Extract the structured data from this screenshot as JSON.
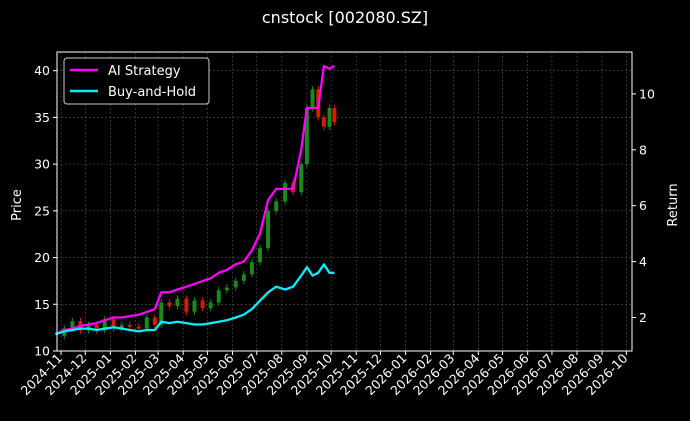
{
  "chart_data": {
    "type": "line",
    "title": "cnstock [002080.SZ]",
    "xlabel": "",
    "ylabel": "Price",
    "y2label": "Return",
    "x_tick_labels": [
      "2024-11",
      "2024-12",
      "2025-01",
      "2025-02",
      "2025-03",
      "2025-04",
      "2025-05",
      "2025-06",
      "2025-07",
      "2025-08",
      "2025-09",
      "2025-10",
      "2025-11",
      "2025-12",
      "2026-01",
      "2026-02",
      "2026-03",
      "2026-04",
      "2026-05",
      "2026-06",
      "2026-07",
      "2026-08",
      "2026-09",
      "2026-10"
    ],
    "ylim": [
      10,
      42
    ],
    "y_ticks": [
      10,
      15,
      20,
      25,
      30,
      35,
      40
    ],
    "y2lim": [
      0.8,
      11.5
    ],
    "y2_ticks": [
      2,
      4,
      6,
      8,
      10
    ],
    "grid": true,
    "legend_position": "top-left",
    "colors": {
      "background": "#000000",
      "axes": "#ffffff",
      "grid": "#555555",
      "candle_up": "#1a8a1a",
      "candle_down": "#cc2200"
    },
    "price_candles": {
      "x": [
        "2024-10-25",
        "2024-11-05",
        "2024-11-15",
        "2024-11-25",
        "2024-12-05",
        "2024-12-15",
        "2024-12-25",
        "2025-01-05",
        "2025-01-15",
        "2025-01-25",
        "2025-02-05",
        "2025-02-15",
        "2025-02-25",
        "2025-03-05",
        "2025-03-15",
        "2025-03-25",
        "2025-04-05",
        "2025-04-15",
        "2025-04-25",
        "2025-05-05",
        "2025-05-15",
        "2025-05-25",
        "2025-06-05",
        "2025-06-15",
        "2025-06-25",
        "2025-07-05",
        "2025-07-15",
        "2025-07-25",
        "2025-08-05",
        "2025-08-15",
        "2025-08-25",
        "2025-09-01",
        "2025-09-08",
        "2025-09-15",
        "2025-09-22",
        "2025-09-29",
        "2025-10-05"
      ],
      "close": [
        11.6,
        12.4,
        13.2,
        12.2,
        12.8,
        12.2,
        13.4,
        12.4,
        12.8,
        12.6,
        12.4,
        13.6,
        12.8,
        15.2,
        14.8,
        15.6,
        14.2,
        15.4,
        14.6,
        15.2,
        16.5,
        16.8,
        17.5,
        18.2,
        19.5,
        21,
        25,
        26,
        28,
        27,
        30,
        36,
        38,
        35,
        34,
        36,
        34.5
      ]
    },
    "series": [
      {
        "name": "AI Strategy",
        "color": "#ff00ff",
        "axis": "right",
        "x": [
          "2024-10-25",
          "2024-11-05",
          "2024-11-15",
          "2024-11-25",
          "2024-12-05",
          "2024-12-15",
          "2024-12-25",
          "2025-01-05",
          "2025-01-15",
          "2025-01-25",
          "2025-02-05",
          "2025-02-15",
          "2025-02-25",
          "2025-03-05",
          "2025-03-15",
          "2025-03-25",
          "2025-04-05",
          "2025-04-15",
          "2025-04-25",
          "2025-05-05",
          "2025-05-15",
          "2025-05-25",
          "2025-06-05",
          "2025-06-15",
          "2025-06-25",
          "2025-07-05",
          "2025-07-15",
          "2025-07-25",
          "2025-08-05",
          "2025-08-15",
          "2025-08-25",
          "2025-09-01",
          "2025-09-08",
          "2025-09-15",
          "2025-09-22",
          "2025-09-29",
          "2025-10-05"
        ],
        "values": [
          1.4,
          1.55,
          1.6,
          1.7,
          1.75,
          1.8,
          1.9,
          2.0,
          2.0,
          2.05,
          2.1,
          2.2,
          2.3,
          2.9,
          2.9,
          3.0,
          3.1,
          3.2,
          3.3,
          3.4,
          3.6,
          3.7,
          3.9,
          4.0,
          4.4,
          5.0,
          6.2,
          6.6,
          6.6,
          6.6,
          8.0,
          9.5,
          9.5,
          9.5,
          11.0,
          10.9,
          11.0
        ]
      },
      {
        "name": "Buy-and-Hold",
        "color": "#00f0ff",
        "axis": "right",
        "x": [
          "2024-10-25",
          "2024-11-05",
          "2024-11-15",
          "2024-11-25",
          "2024-12-05",
          "2024-12-15",
          "2024-12-25",
          "2025-01-05",
          "2025-01-15",
          "2025-01-25",
          "2025-02-05",
          "2025-02-15",
          "2025-02-25",
          "2025-03-05",
          "2025-03-15",
          "2025-03-25",
          "2025-04-05",
          "2025-04-15",
          "2025-04-25",
          "2025-05-05",
          "2025-05-15",
          "2025-05-25",
          "2025-06-05",
          "2025-06-15",
          "2025-06-25",
          "2025-07-05",
          "2025-07-15",
          "2025-07-25",
          "2025-08-05",
          "2025-08-15",
          "2025-08-25",
          "2025-09-01",
          "2025-09-08",
          "2025-09-15",
          "2025-09-22",
          "2025-09-29",
          "2025-10-05"
        ],
        "values": [
          1.4,
          1.5,
          1.55,
          1.6,
          1.6,
          1.55,
          1.6,
          1.65,
          1.6,
          1.55,
          1.5,
          1.55,
          1.55,
          1.85,
          1.8,
          1.85,
          1.8,
          1.75,
          1.75,
          1.8,
          1.85,
          1.9,
          2.0,
          2.1,
          2.3,
          2.6,
          2.9,
          3.1,
          3.0,
          3.1,
          3.5,
          3.8,
          3.5,
          3.6,
          3.9,
          3.6,
          3.6
        ]
      }
    ]
  }
}
